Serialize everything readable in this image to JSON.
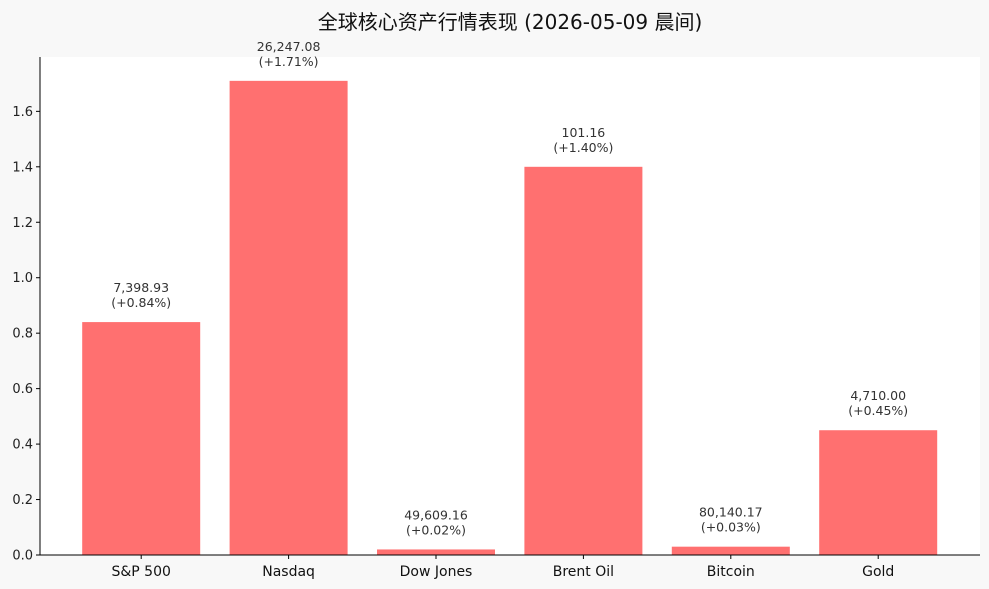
{
  "chart_data": {
    "type": "bar",
    "title": "全球核心资产行情表现 (2026-05-09 晨间)",
    "xlabel": "",
    "ylabel": "",
    "categories": [
      "S&P 500",
      "Nasdaq",
      "Dow Jones",
      "Brent Oil",
      "Bitcoin",
      "Gold"
    ],
    "values": [
      0.84,
      1.71,
      0.02,
      1.4,
      0.03,
      0.45
    ],
    "price_labels": [
      "7,398.93",
      "26,247.08",
      "49,609.16",
      "101.16",
      "80,140.17",
      "4,710.00"
    ],
    "change_labels": [
      "(+0.84%)",
      "(+1.71%)",
      "(+0.02%)",
      "(+1.40%)",
      "(+0.03%)",
      "(+0.45%)"
    ],
    "ylim": [
      0,
      1.796
    ],
    "yticks": [
      "0.0",
      "0.2",
      "0.4",
      "0.6",
      "0.8",
      "1.0",
      "1.2",
      "1.4",
      "1.6"
    ],
    "ytick_values": [
      0,
      0.2,
      0.4,
      0.6,
      0.8,
      1.0,
      1.2,
      1.4,
      1.6
    ],
    "grid": false,
    "bar_color": "#ff7070",
    "plot_background": "#ffffff",
    "figure_background": "#f8f8f8"
  }
}
